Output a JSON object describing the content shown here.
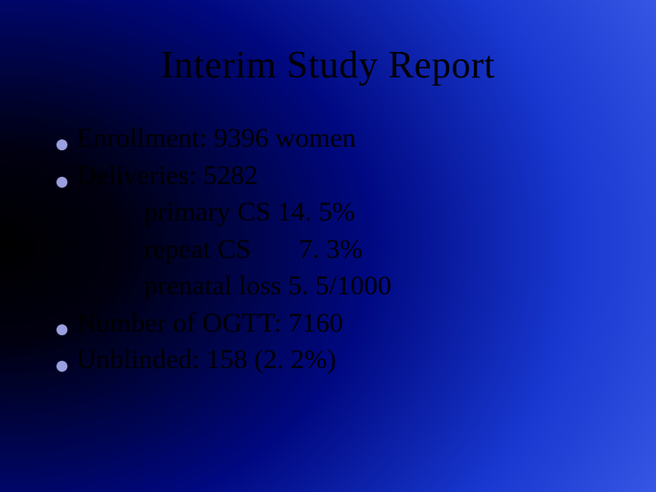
{
  "slide": {
    "title": "Interim Study Report",
    "title_fontsize": 42,
    "title_color": "#000000",
    "background_gradient": {
      "type": "radial",
      "stops": [
        "#000000",
        "#000010",
        "#000880",
        "#1838d0",
        "#4868f0"
      ]
    },
    "bullet_color": "#9aa0e0",
    "body_fontsize": 30,
    "body_color": "#000000",
    "items": [
      {
        "kind": "bullet",
        "text": "Enrollment: 9396 women"
      },
      {
        "kind": "bullet",
        "text": "Deliveries: 5282"
      },
      {
        "kind": "sub",
        "text": "primary CS 14. 5%"
      },
      {
        "kind": "sub",
        "text": "repeat CS       7. 3%"
      },
      {
        "kind": "sub",
        "text": "prenatal loss 5. 5/1000"
      },
      {
        "kind": "bullet",
        "text": "Number of OGTT: 7160"
      },
      {
        "kind": "bullet",
        "text": "Unblinded: 158 (2. 2%)"
      }
    ]
  }
}
